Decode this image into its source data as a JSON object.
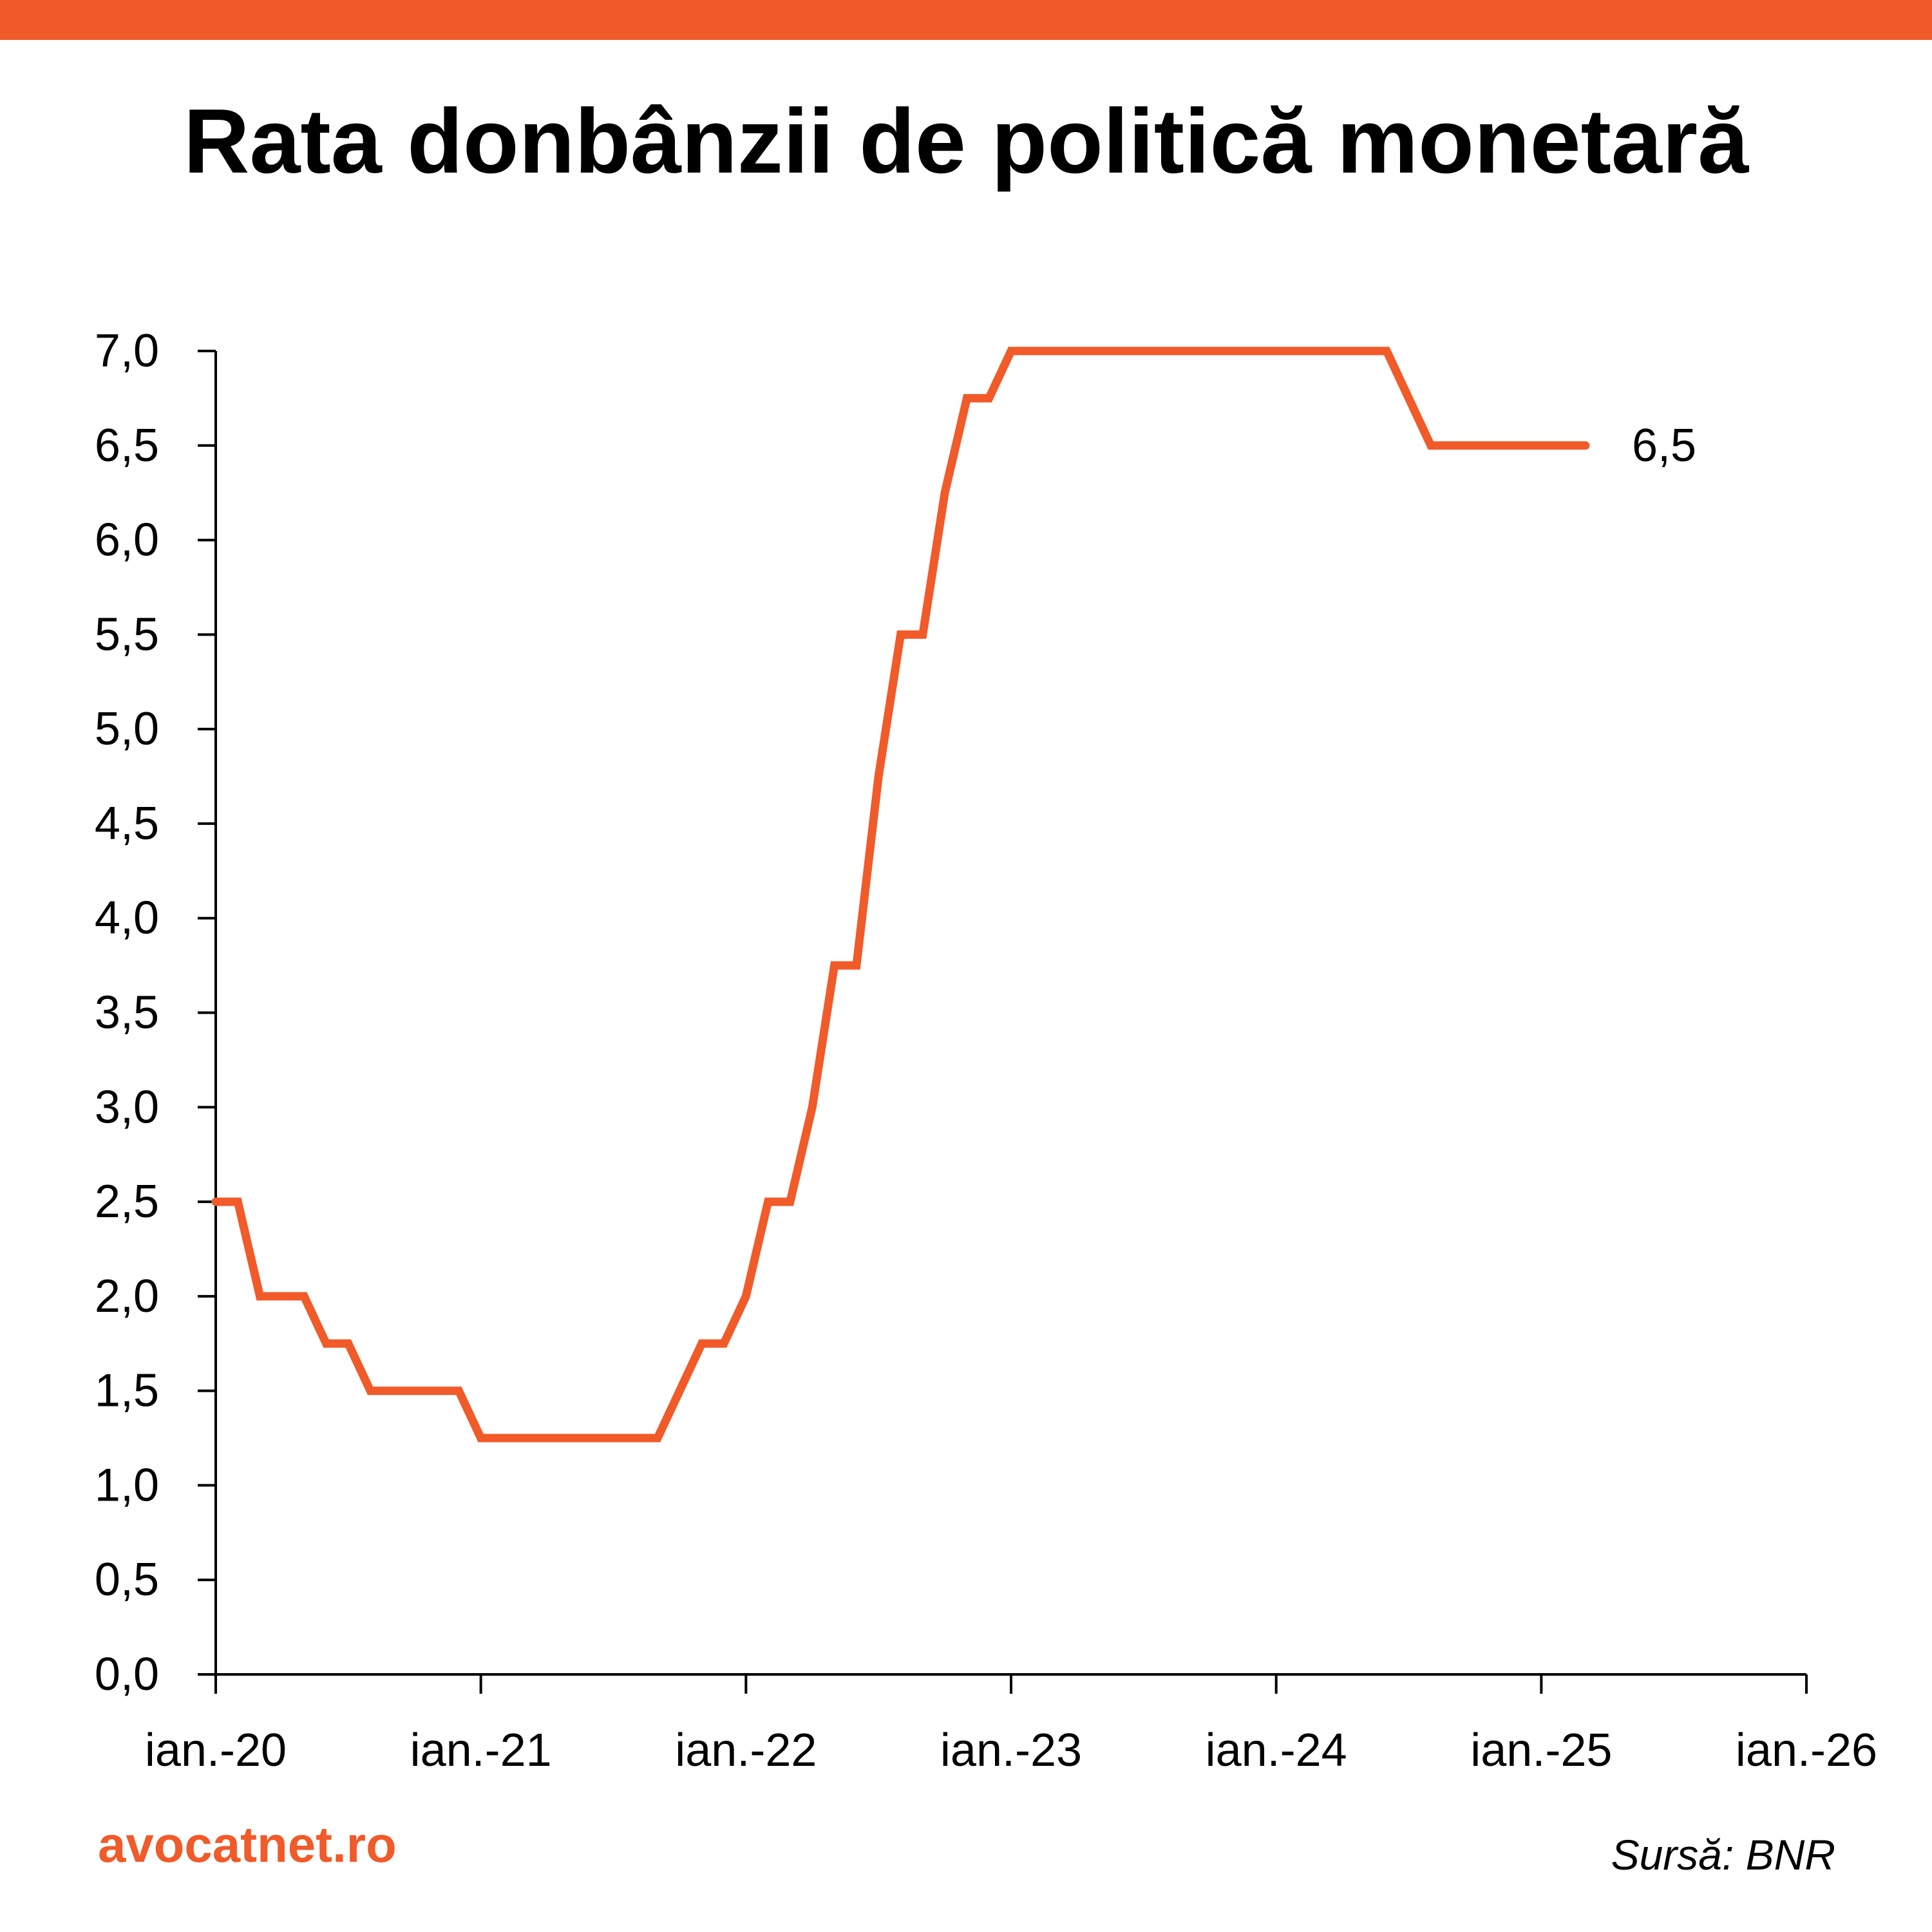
{
  "colors": {
    "accent": "#F15A29",
    "text": "#000000",
    "axis": "#000000"
  },
  "title": "Rata donbânzii de politică monetară",
  "footer": {
    "brand": "avocatnet.ro",
    "source": "Sursă: BNR"
  },
  "chart_data": {
    "type": "line",
    "title": "Rata donbânzii de politică monetară",
    "xlabel": "",
    "ylabel": "",
    "ylim": [
      0,
      7
    ],
    "y_ticks": [
      "0,0",
      "0,5",
      "1,0",
      "1,5",
      "2,0",
      "2,5",
      "3,0",
      "3,5",
      "4,0",
      "4,5",
      "5,0",
      "5,5",
      "6,0",
      "6,5",
      "7,0"
    ],
    "x_ticks": [
      "ian.-20",
      "ian.-21",
      "ian.-22",
      "ian.-23",
      "ian.-24",
      "ian.-25",
      "ian.-26"
    ],
    "x_start": "2020-01",
    "x_end": "2026-01",
    "grid": false,
    "legend": "none",
    "series": [
      {
        "color": "#F15A29",
        "points": [
          [
            "2020-01",
            2.5
          ],
          [
            "2020-02",
            2.5
          ],
          [
            "2020-03",
            2.0
          ],
          [
            "2020-04",
            2.0
          ],
          [
            "2020-05",
            2.0
          ],
          [
            "2020-06",
            1.75
          ],
          [
            "2020-07",
            1.75
          ],
          [
            "2020-08",
            1.5
          ],
          [
            "2020-09",
            1.5
          ],
          [
            "2020-10",
            1.5
          ],
          [
            "2020-11",
            1.5
          ],
          [
            "2020-12",
            1.5
          ],
          [
            "2021-01",
            1.25
          ],
          [
            "2021-02",
            1.25
          ],
          [
            "2021-03",
            1.25
          ],
          [
            "2021-04",
            1.25
          ],
          [
            "2021-05",
            1.25
          ],
          [
            "2021-06",
            1.25
          ],
          [
            "2021-07",
            1.25
          ],
          [
            "2021-08",
            1.25
          ],
          [
            "2021-09",
            1.25
          ],
          [
            "2021-10",
            1.5
          ],
          [
            "2021-11",
            1.75
          ],
          [
            "2021-12",
            1.75
          ],
          [
            "2022-01",
            2.0
          ],
          [
            "2022-02",
            2.5
          ],
          [
            "2022-03",
            2.5
          ],
          [
            "2022-04",
            3.0
          ],
          [
            "2022-05",
            3.75
          ],
          [
            "2022-06",
            3.75
          ],
          [
            "2022-07",
            4.75
          ],
          [
            "2022-08",
            5.5
          ],
          [
            "2022-09",
            5.5
          ],
          [
            "2022-10",
            6.25
          ],
          [
            "2022-11",
            6.75
          ],
          [
            "2022-12",
            6.75
          ],
          [
            "2023-01",
            7.0
          ],
          [
            "2023-02",
            7.0
          ],
          [
            "2023-03",
            7.0
          ],
          [
            "2023-04",
            7.0
          ],
          [
            "2023-05",
            7.0
          ],
          [
            "2023-06",
            7.0
          ],
          [
            "2023-07",
            7.0
          ],
          [
            "2023-08",
            7.0
          ],
          [
            "2023-09",
            7.0
          ],
          [
            "2023-10",
            7.0
          ],
          [
            "2023-11",
            7.0
          ],
          [
            "2023-12",
            7.0
          ],
          [
            "2024-01",
            7.0
          ],
          [
            "2024-02",
            7.0
          ],
          [
            "2024-03",
            7.0
          ],
          [
            "2024-04",
            7.0
          ],
          [
            "2024-05",
            7.0
          ],
          [
            "2024-06",
            7.0
          ],
          [
            "2024-07",
            6.75
          ],
          [
            "2024-08",
            6.5
          ],
          [
            "2024-09",
            6.5
          ],
          [
            "2024-10",
            6.5
          ],
          [
            "2024-11",
            6.5
          ],
          [
            "2024-12",
            6.5
          ],
          [
            "2025-01",
            6.5
          ],
          [
            "2025-02",
            6.5
          ],
          [
            "2025-03",
            6.5
          ]
        ]
      }
    ],
    "annotations": [
      {
        "text": "6,5",
        "x": "2025-03",
        "y": 6.5
      }
    ]
  }
}
